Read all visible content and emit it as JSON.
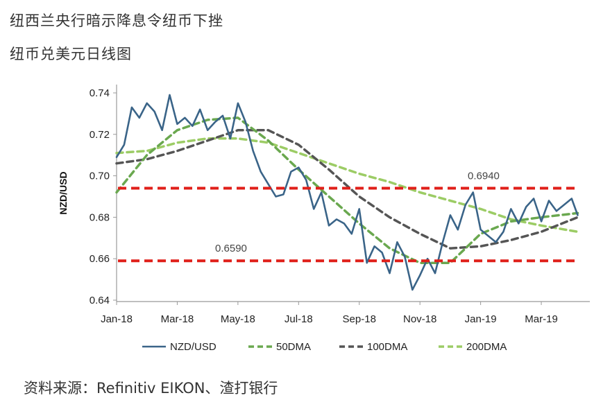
{
  "headline": "纽西兰央行暗示降息令纽币下挫",
  "subheadline": "纽币兑美元日线图",
  "source": "资料来源：Refinitiv EIKON、渣打银行",
  "colors": {
    "nzdusd": "#3a6488",
    "dma50": "#6aa84f",
    "dma100": "#555555",
    "dma200": "#9ccc65",
    "level": "#e0201a",
    "axis": "#999999"
  },
  "chart_data": {
    "type": "line",
    "ylabel": "NZD/USD",
    "xlabel": "",
    "ylim": [
      0.64,
      0.745
    ],
    "yticks": [
      "0.74",
      "0.72",
      "0.70",
      "0.68",
      "0.66",
      "0.64"
    ],
    "yticks_values": [
      0.74,
      0.72,
      0.7,
      0.68,
      0.66,
      0.64
    ],
    "x_tick_labels": [
      "Jan-18",
      "Mar-18",
      "May-18",
      "Jul-18",
      "Sep-18",
      "Nov-18",
      "Jan-19",
      "Mar-19"
    ],
    "x_tick_months": [
      0,
      2,
      4,
      6,
      8,
      10,
      12,
      14
    ],
    "xlim_months": [
      0,
      15.6
    ],
    "grid": false,
    "legend_position": "bottom",
    "legend": [
      "NZD/USD",
      "50DMA",
      "100DMA",
      "200DMA"
    ],
    "levels": [
      {
        "value": 0.694,
        "label": "0.6940"
      },
      {
        "value": 0.659,
        "label": "0.6590"
      }
    ],
    "series": [
      {
        "name": "NZD/USD",
        "x_months": [
          0,
          0.25,
          0.5,
          0.75,
          1,
          1.25,
          1.5,
          1.75,
          2,
          2.25,
          2.5,
          2.75,
          3,
          3.25,
          3.5,
          3.75,
          4,
          4.25,
          4.5,
          4.75,
          5,
          5.25,
          5.5,
          5.75,
          6,
          6.25,
          6.5,
          6.75,
          7,
          7.25,
          7.5,
          7.75,
          8,
          8.25,
          8.5,
          8.75,
          9,
          9.25,
          9.5,
          9.75,
          10,
          10.25,
          10.5,
          10.75,
          11,
          11.25,
          11.5,
          11.75,
          12,
          12.25,
          12.5,
          12.75,
          13,
          13.25,
          13.5,
          13.75,
          14,
          14.25,
          14.5,
          14.75,
          15,
          15.2
        ],
        "values": [
          0.709,
          0.715,
          0.733,
          0.728,
          0.735,
          0.731,
          0.722,
          0.739,
          0.725,
          0.728,
          0.724,
          0.732,
          0.722,
          0.726,
          0.729,
          0.718,
          0.735,
          0.726,
          0.712,
          0.702,
          0.696,
          0.69,
          0.691,
          0.702,
          0.704,
          0.698,
          0.684,
          0.692,
          0.676,
          0.679,
          0.677,
          0.672,
          0.684,
          0.658,
          0.666,
          0.663,
          0.653,
          0.668,
          0.661,
          0.645,
          0.652,
          0.66,
          0.653,
          0.668,
          0.681,
          0.674,
          0.686,
          0.692,
          0.674,
          0.671,
          0.668,
          0.673,
          0.684,
          0.677,
          0.685,
          0.689,
          0.678,
          0.688,
          0.683,
          0.686,
          0.689,
          0.681
        ]
      },
      {
        "name": "50DMA",
        "x_months": [
          0,
          1,
          2,
          3,
          4,
          5,
          6,
          7,
          8,
          9,
          10,
          11,
          12,
          13,
          14,
          15.2
        ],
        "values": [
          0.692,
          0.71,
          0.722,
          0.727,
          0.728,
          0.717,
          0.703,
          0.69,
          0.677,
          0.665,
          0.658,
          0.658,
          0.672,
          0.678,
          0.68,
          0.682
        ]
      },
      {
        "name": "100DMA",
        "x_months": [
          0,
          1,
          2,
          3,
          4,
          5,
          6,
          7,
          8,
          9,
          10,
          11,
          12,
          13,
          14,
          15.2
        ],
        "values": [
          0.706,
          0.708,
          0.712,
          0.717,
          0.722,
          0.722,
          0.715,
          0.703,
          0.69,
          0.68,
          0.672,
          0.665,
          0.666,
          0.669,
          0.673,
          0.68
        ]
      },
      {
        "name": "200DMA",
        "x_months": [
          0,
          1,
          2,
          3,
          4,
          5,
          6,
          7,
          8,
          9,
          10,
          11,
          12,
          13,
          14,
          15.2
        ],
        "values": [
          0.711,
          0.712,
          0.716,
          0.718,
          0.718,
          0.716,
          0.711,
          0.706,
          0.701,
          0.697,
          0.692,
          0.688,
          0.684,
          0.679,
          0.676,
          0.673
        ]
      }
    ]
  }
}
